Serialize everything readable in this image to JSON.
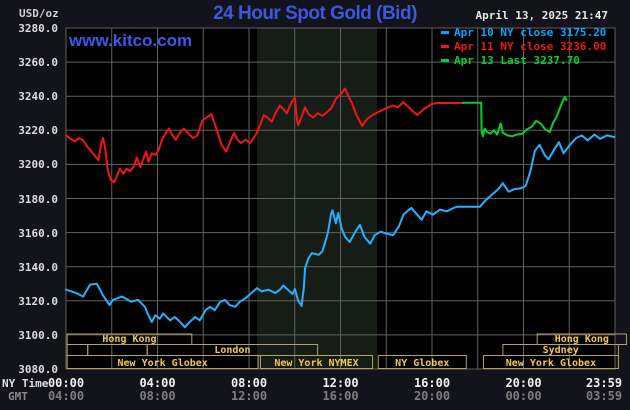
{
  "header": {
    "title": "24 Hour Spot Gold (Bid)",
    "datetime": "April 13, 2025 21:47",
    "watermark": "www.kitco.com"
  },
  "legend": {
    "items": [
      {
        "label": "Apr 10 NY close 3175.20",
        "color": "#00a6ff"
      },
      {
        "label": "Apr 11 NY close 3236.00",
        "color": "#f21515"
      },
      {
        "label": "Apr 13 Last 3237.70",
        "color": "#00d22a"
      }
    ]
  },
  "y_axis": {
    "unit": "USD/oz",
    "tick_labels": [
      "3280.0",
      "3260.0",
      "3240.0",
      "3220.0",
      "3200.0",
      "3180.0",
      "3160.0",
      "3140.0",
      "3120.0",
      "3100.0",
      "3080.0"
    ]
  },
  "x_axis": {
    "ny_label": "NY Time",
    "gmt_label": "GMT",
    "ny_ticks": [
      {
        "label": "00:00",
        "hour": 0
      },
      {
        "label": "04:00",
        "hour": 4
      },
      {
        "label": "08:00",
        "hour": 8
      },
      {
        "label": "12:00",
        "hour": 12
      },
      {
        "label": "16:00",
        "hour": 16
      },
      {
        "label": "20:00",
        "hour": 20
      },
      {
        "label": "23:59",
        "hour": 23.52
      }
    ],
    "gmt_ticks": [
      {
        "label": "04:00",
        "hour": 0
      },
      {
        "label": "08:00",
        "hour": 4
      },
      {
        "label": "12:00",
        "hour": 8
      },
      {
        "label": "16:00",
        "hour": 12
      },
      {
        "label": "20:00",
        "hour": 16
      },
      {
        "label": "00:00",
        "hour": 20
      },
      {
        "label": "03:59",
        "hour": 23.52
      }
    ]
  },
  "sessions": {
    "text_color": "#eecb4c",
    "border_color": "#b3a364",
    "rows": [
      [
        {
          "label": "Hong Kong",
          "from_hour": 0.05,
          "to_hour": 5.5
        },
        {
          "label": "Hong Kong",
          "from_hour": 20.6,
          "to_hour": 24.5
        }
      ],
      [
        {
          "label": "",
          "from_hour": 0.05,
          "to_hour": 0.95
        },
        {
          "label": "",
          "from_hour": 0.95,
          "to_hour": 3.55
        },
        {
          "label": "London",
          "from_hour": 3.55,
          "to_hour": 11.0
        },
        {
          "label": "Sydney",
          "from_hour": 19.1,
          "to_hour": 24.15
        }
      ],
      [
        {
          "label": "New York Globex",
          "from_hour": 0.05,
          "to_hour": 8.4
        },
        {
          "label": "New York NYMEX",
          "from_hour": 8.5,
          "to_hour": 13.4
        },
        {
          "label": "NY Globex",
          "from_hour": 13.65,
          "to_hour": 17.5
        },
        {
          "label": "New York Globex",
          "from_hour": 18.25,
          "to_hour": 24.15
        }
      ]
    ]
  },
  "chart_data": {
    "type": "line",
    "title": "24 Hour Spot Gold (Bid)",
    "xlabel": "NY Time (hours 00:00-23:59)",
    "ylabel": "USD/oz",
    "ylim": [
      3080,
      3280
    ],
    "xlim_hours": [
      0,
      24
    ],
    "grid": true,
    "grid_color": "#616161",
    "plot_bg": "#000000",
    "highlight_band_hours": [
      8.35,
      13.6
    ],
    "highlight_band_color": "#161d16",
    "legend_position": "top-right",
    "series": [
      {
        "name": "Apr 10 (NY close 3175.20)",
        "color": "#22b2ff",
        "points": [
          [
            0,
            3126.5
          ],
          [
            0.45,
            3124.5
          ],
          [
            0.75,
            3122.5
          ],
          [
            1.05,
            3129.5
          ],
          [
            1.35,
            3130
          ],
          [
            1.6,
            3123.5
          ],
          [
            1.9,
            3117.5
          ],
          [
            2.05,
            3120.5
          ],
          [
            2.45,
            3122.5
          ],
          [
            2.85,
            3119.5
          ],
          [
            3.15,
            3120.5
          ],
          [
            3.45,
            3116.5
          ],
          [
            3.6,
            3111.5
          ],
          [
            3.75,
            3107.5
          ],
          [
            3.9,
            3111.5
          ],
          [
            4.1,
            3109.5
          ],
          [
            4.25,
            3112.5
          ],
          [
            4.55,
            3108.5
          ],
          [
            4.75,
            3110.5
          ],
          [
            5,
            3107.5
          ],
          [
            5.2,
            3104.5
          ],
          [
            5.4,
            3107.5
          ],
          [
            5.65,
            3110.5
          ],
          [
            5.85,
            3108.5
          ],
          [
            6.1,
            3114.5
          ],
          [
            6.3,
            3116.5
          ],
          [
            6.5,
            3114.5
          ],
          [
            6.75,
            3119.5
          ],
          [
            6.95,
            3120.5
          ],
          [
            7.15,
            3117.5
          ],
          [
            7.4,
            3116.5
          ],
          [
            7.6,
            3119.5
          ],
          [
            7.85,
            3121.5
          ],
          [
            8.1,
            3124.5
          ],
          [
            8.35,
            3127.5
          ],
          [
            8.55,
            3125.5
          ],
          [
            8.85,
            3126.5
          ],
          [
            9.15,
            3124.5
          ],
          [
            9.35,
            3126.5
          ],
          [
            9.5,
            3129
          ],
          [
            9.9,
            3124
          ],
          [
            10,
            3127
          ],
          [
            10.15,
            3120
          ],
          [
            10.3,
            3117
          ],
          [
            10.4,
            3128
          ],
          [
            10.45,
            3139
          ],
          [
            10.6,
            3145
          ],
          [
            10.75,
            3148
          ],
          [
            11.05,
            3147
          ],
          [
            11.2,
            3149
          ],
          [
            11.3,
            3153
          ],
          [
            11.45,
            3160
          ],
          [
            11.6,
            3171.5
          ],
          [
            11.65,
            3173
          ],
          [
            11.8,
            3165.5
          ],
          [
            11.9,
            3171.5
          ],
          [
            12.05,
            3162.5
          ],
          [
            12.2,
            3157.5
          ],
          [
            12.4,
            3154.5
          ],
          [
            12.65,
            3160.5
          ],
          [
            12.85,
            3164.5
          ],
          [
            13.05,
            3157.5
          ],
          [
            13.3,
            3153.5
          ],
          [
            13.5,
            3158.5
          ],
          [
            13.75,
            3160.5
          ],
          [
            14,
            3159.5
          ],
          [
            14.3,
            3158.5
          ],
          [
            14.55,
            3163.5
          ],
          [
            14.75,
            3170.5
          ],
          [
            15,
            3173.5
          ],
          [
            15.1,
            3174.5
          ],
          [
            15.35,
            3170.5
          ],
          [
            15.55,
            3167.5
          ],
          [
            15.75,
            3172.5
          ],
          [
            16.05,
            3170.5
          ],
          [
            16.35,
            3173.5
          ],
          [
            16.65,
            3172.5
          ],
          [
            16.95,
            3174.5
          ],
          [
            17.1,
            3175.2
          ],
          [
            18.1,
            3175.2
          ],
          [
            18.35,
            3179
          ],
          [
            18.6,
            3182
          ],
          [
            18.9,
            3185.5
          ],
          [
            19.1,
            3189
          ],
          [
            19.35,
            3184
          ],
          [
            19.6,
            3185.5
          ],
          [
            19.9,
            3186
          ],
          [
            20.1,
            3187.5
          ],
          [
            20.3,
            3196
          ],
          [
            20.5,
            3208
          ],
          [
            20.7,
            3211.5
          ],
          [
            20.95,
            3205
          ],
          [
            21.1,
            3203
          ],
          [
            21.35,
            3209
          ],
          [
            21.55,
            3213
          ],
          [
            21.75,
            3206.5
          ],
          [
            22,
            3211
          ],
          [
            22.3,
            3215.5
          ],
          [
            22.55,
            3217
          ],
          [
            22.8,
            3214
          ],
          [
            23.1,
            3217.5
          ],
          [
            23.35,
            3215
          ],
          [
            23.65,
            3217
          ],
          [
            23.98,
            3216
          ]
        ]
      },
      {
        "name": "Apr 11 (NY close 3236.00)",
        "color": "#f21515",
        "points": [
          [
            0,
            3217
          ],
          [
            0.2,
            3215
          ],
          [
            0.4,
            3213.5
          ],
          [
            0.55,
            3215.5
          ],
          [
            0.75,
            3214
          ],
          [
            0.95,
            3210
          ],
          [
            1.15,
            3207
          ],
          [
            1.3,
            3204.5
          ],
          [
            1.42,
            3202.5
          ],
          [
            1.55,
            3213
          ],
          [
            1.62,
            3215.5
          ],
          [
            1.72,
            3209
          ],
          [
            1.82,
            3197
          ],
          [
            1.95,
            3191
          ],
          [
            2.1,
            3189.5
          ],
          [
            2.25,
            3194
          ],
          [
            2.35,
            3197.5
          ],
          [
            2.5,
            3194.5
          ],
          [
            2.65,
            3197.5
          ],
          [
            2.8,
            3196
          ],
          [
            2.95,
            3198.5
          ],
          [
            3.1,
            3204
          ],
          [
            3.25,
            3198.5
          ],
          [
            3.4,
            3204
          ],
          [
            3.5,
            3207.5
          ],
          [
            3.6,
            3201.5
          ],
          [
            3.75,
            3206.5
          ],
          [
            3.9,
            3205.5
          ],
          [
            4.05,
            3208.5
          ],
          [
            4.2,
            3214.5
          ],
          [
            4.4,
            3219.5
          ],
          [
            4.5,
            3221
          ],
          [
            4.65,
            3217
          ],
          [
            4.8,
            3214.5
          ],
          [
            5,
            3219
          ],
          [
            5.15,
            3221
          ],
          [
            5.35,
            3218
          ],
          [
            5.55,
            3215.5
          ],
          [
            5.75,
            3217
          ],
          [
            5.95,
            3225.5
          ],
          [
            6.15,
            3227.5
          ],
          [
            6.35,
            3229.5
          ],
          [
            6.55,
            3222
          ],
          [
            6.8,
            3211.5
          ],
          [
            7,
            3207.5
          ],
          [
            7.2,
            3214
          ],
          [
            7.35,
            3218.5
          ],
          [
            7.5,
            3214.5
          ],
          [
            7.65,
            3212.5
          ],
          [
            7.85,
            3214.5
          ],
          [
            8.05,
            3212.5
          ],
          [
            8.3,
            3217.5
          ],
          [
            8.5,
            3223.5
          ],
          [
            8.65,
            3229
          ],
          [
            8.8,
            3227.5
          ],
          [
            9,
            3225
          ],
          [
            9.15,
            3230
          ],
          [
            9.35,
            3234.5
          ],
          [
            9.5,
            3232.5
          ],
          [
            9.65,
            3230
          ],
          [
            9.85,
            3236
          ],
          [
            10,
            3239.5
          ],
          [
            10.1,
            3226
          ],
          [
            10.15,
            3223
          ],
          [
            10.3,
            3228
          ],
          [
            10.45,
            3233.5
          ],
          [
            10.6,
            3229.5
          ],
          [
            10.8,
            3227.5
          ],
          [
            11,
            3230
          ],
          [
            11.2,
            3228.5
          ],
          [
            11.4,
            3230.5
          ],
          [
            11.6,
            3233
          ],
          [
            11.8,
            3238.5
          ],
          [
            12,
            3241
          ],
          [
            12.2,
            3244.5
          ],
          [
            12.35,
            3240
          ],
          [
            12.5,
            3236
          ],
          [
            12.7,
            3229
          ],
          [
            12.95,
            3222.5
          ],
          [
            13.15,
            3226.5
          ],
          [
            13.4,
            3229
          ],
          [
            13.7,
            3231
          ],
          [
            14,
            3233
          ],
          [
            14.3,
            3234.5
          ],
          [
            14.5,
            3233.5
          ],
          [
            14.75,
            3236.5
          ],
          [
            15.1,
            3232
          ],
          [
            15.35,
            3229
          ],
          [
            15.7,
            3233
          ],
          [
            16,
            3235.5
          ],
          [
            16.3,
            3236
          ],
          [
            17.35,
            3236
          ]
        ]
      },
      {
        "name": "Apr 13 (Last 3237.70)",
        "color": "#00d22a",
        "points": [
          [
            17.35,
            3236.2
          ],
          [
            18.15,
            3236.2
          ],
          [
            18.17,
            3220
          ],
          [
            18.22,
            3216.5
          ],
          [
            18.3,
            3221
          ],
          [
            18.4,
            3219
          ],
          [
            18.55,
            3218
          ],
          [
            18.7,
            3220
          ],
          [
            18.85,
            3217.5
          ],
          [
            19,
            3224
          ],
          [
            19.1,
            3218.5
          ],
          [
            19.3,
            3217
          ],
          [
            19.5,
            3216.5
          ],
          [
            19.7,
            3217.5
          ],
          [
            19.95,
            3218
          ],
          [
            20.15,
            3220.5
          ],
          [
            20.35,
            3222
          ],
          [
            20.55,
            3225.5
          ],
          [
            20.75,
            3224
          ],
          [
            20.95,
            3220.5
          ],
          [
            21.15,
            3219
          ],
          [
            21.3,
            3224.5
          ],
          [
            21.45,
            3228
          ],
          [
            21.65,
            3235
          ],
          [
            21.8,
            3239.5
          ],
          [
            21.88,
            3237.7
          ]
        ]
      }
    ]
  }
}
